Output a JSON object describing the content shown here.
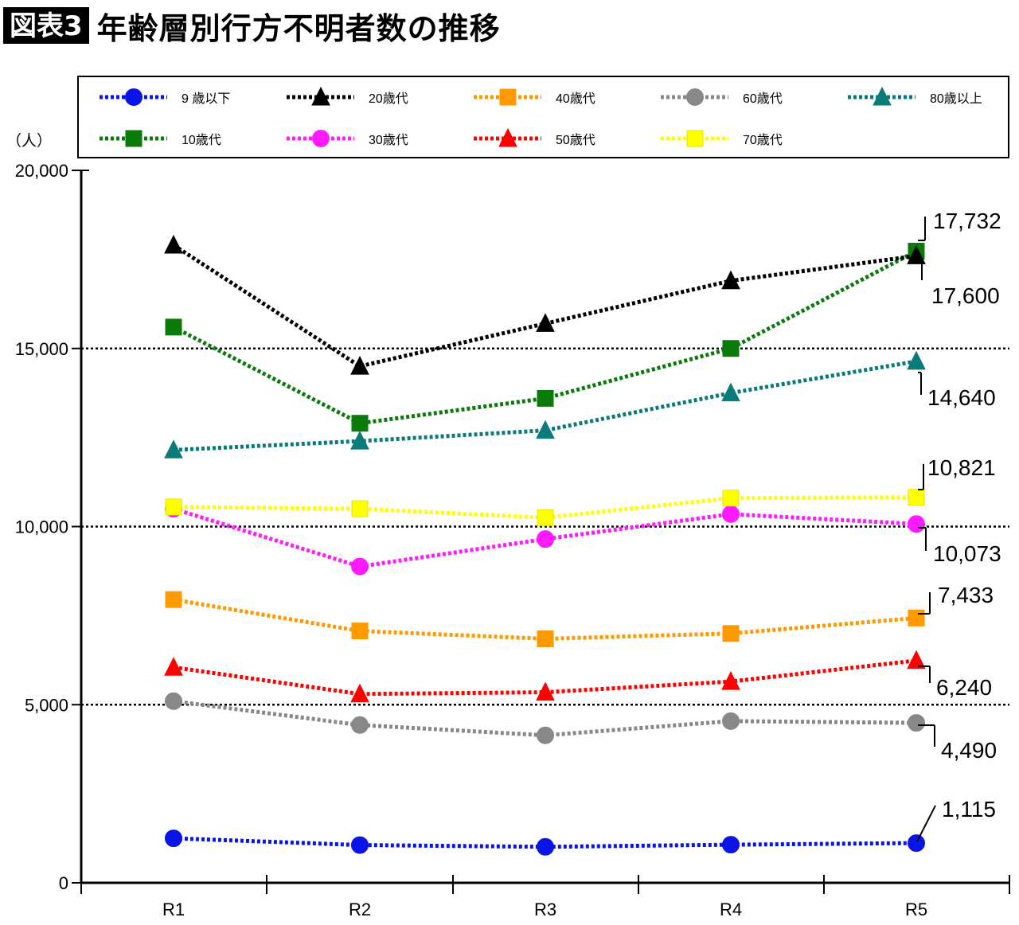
{
  "figure": {
    "badge": "図表3",
    "title": "年齢層別行方不明者数の推移"
  },
  "colors": {
    "0-9": "#0a14e6",
    "10s": "#0a7a0a",
    "20s": "#000000",
    "30s": "#ff1aff",
    "40s": "#ff9900",
    "50s": "#ff0000",
    "60s": "#888888",
    "70s": "#ffff00",
    "80+": "#0a7a7a"
  },
  "chart_data": {
    "type": "line",
    "title": "",
    "xlabel": "",
    "ylabel": "（人）",
    "categories": [
      "R1",
      "R2",
      "R3",
      "R4",
      "R5"
    ],
    "ylim": [
      0,
      20000
    ],
    "yticks": [
      0,
      5000,
      10000,
      15000,
      20000
    ],
    "ytick_labels": [
      "0",
      "5,000",
      "10,000",
      "15,000",
      "20,000"
    ],
    "gridlines": [
      5000,
      10000,
      15000
    ],
    "legend_position": "top",
    "series": [
      {
        "name": "9 歳以下",
        "key": "0-9",
        "marker": "circle",
        "values": [
          1250,
          1060,
          1010,
          1070,
          1115
        ]
      },
      {
        "name": "10歳代",
        "key": "10s",
        "marker": "square",
        "values": [
          15600,
          12900,
          13600,
          15000,
          17732
        ]
      },
      {
        "name": "20歳代",
        "key": "20s",
        "marker": "triangle",
        "values": [
          17900,
          14500,
          15700,
          16900,
          17600
        ]
      },
      {
        "name": "30歳代",
        "key": "30s",
        "marker": "circle",
        "values": [
          10500,
          8880,
          9650,
          10350,
          10073
        ]
      },
      {
        "name": "40歳代",
        "key": "40s",
        "marker": "square",
        "values": [
          7950,
          7070,
          6850,
          7000,
          7433
        ]
      },
      {
        "name": "50歳代",
        "key": "50s",
        "marker": "triangle",
        "values": [
          6050,
          5300,
          5350,
          5650,
          6240
        ]
      },
      {
        "name": "60歳代",
        "key": "60s",
        "marker": "circle",
        "values": [
          5100,
          4430,
          4140,
          4540,
          4490
        ]
      },
      {
        "name": "70歳代",
        "key": "70s",
        "marker": "square",
        "values": [
          10550,
          10500,
          10250,
          10800,
          10821
        ]
      },
      {
        "name": "80歳以上",
        "key": "80+",
        "marker": "triangle",
        "values": [
          12150,
          12400,
          12700,
          13750,
          14640
        ]
      }
    ],
    "annotations": [
      {
        "series": "10s",
        "label": "17,732"
      },
      {
        "series": "20s",
        "label": "17,600"
      },
      {
        "series": "80+",
        "label": "14,640"
      },
      {
        "series": "70s",
        "label": "10,821"
      },
      {
        "series": "30s",
        "label": "10,073"
      },
      {
        "series": "40s",
        "label": "7,433"
      },
      {
        "series": "50s",
        "label": "6,240"
      },
      {
        "series": "60s",
        "label": "4,490"
      },
      {
        "series": "0-9",
        "label": "1,115"
      }
    ]
  }
}
